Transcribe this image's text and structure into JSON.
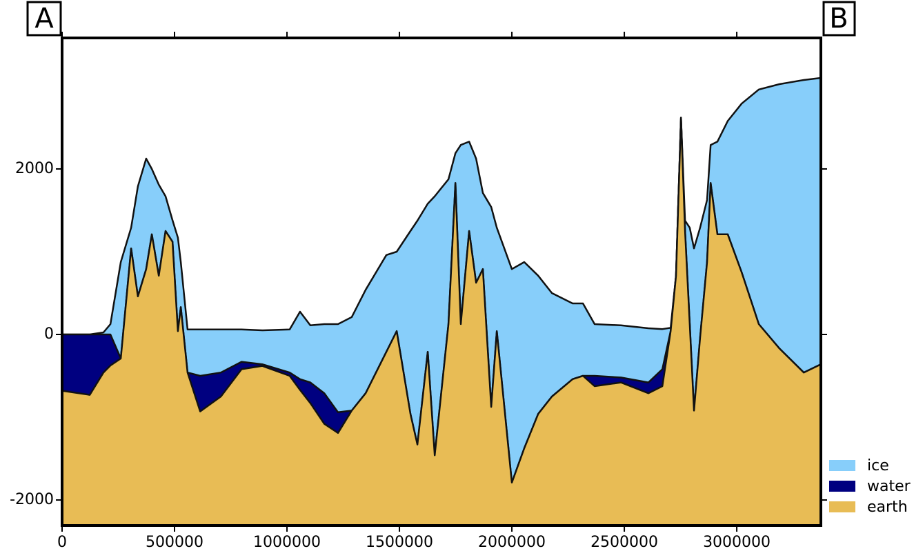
{
  "chart_data": {
    "type": "area",
    "start_label": "A",
    "end_label": "B",
    "x": [
      0,
      123000,
      184000,
      215000,
      261000,
      307000,
      337000,
      374000,
      399000,
      430000,
      460000,
      491000,
      515000,
      528000,
      558000,
      614000,
      706000,
      798000,
      890000,
      1012000,
      1058000,
      1104000,
      1166000,
      1227000,
      1288000,
      1350000,
      1442000,
      1488000,
      1549000,
      1580000,
      1626000,
      1657000,
      1718000,
      1749000,
      1773000,
      1810000,
      1841000,
      1871000,
      1908000,
      1933000,
      2000000,
      2055000,
      2117000,
      2178000,
      2270000,
      2316000,
      2368000,
      2485000,
      2607000,
      2669000,
      2706000,
      2730000,
      2752000,
      2770000,
      2791000,
      2810000,
      2837000,
      2868000,
      2884000,
      2914000,
      2960000,
      3022000,
      3098000,
      3190000,
      3298000,
      3374000
    ],
    "series": [
      {
        "name": "ice",
        "color": "#87cefa",
        "values": [
          0,
          0,
          25,
          125,
          875,
          1290,
          1790,
          2125,
          2000,
          1810,
          1670,
          1380,
          1170,
          875,
          60,
          60,
          60,
          60,
          50,
          60,
          275,
          110,
          125,
          125,
          210,
          540,
          960,
          1000,
          1250,
          1375,
          1580,
          1670,
          1875,
          2190,
          2290,
          2330,
          2125,
          1710,
          1540,
          1290,
          790,
          875,
          710,
          500,
          375,
          375,
          125,
          110,
          75,
          65,
          80,
          710,
          2620,
          1375,
          1290,
          1040,
          1290,
          1625,
          2290,
          2330,
          2580,
          2790,
          2960,
          3025,
          3075,
          3100
        ]
      },
      {
        "name": "water",
        "color": "#000080",
        "values": [
          0,
          0,
          0,
          0,
          -290,
          1040,
          460,
          790,
          1210,
          710,
          1250,
          1120,
          40,
          330,
          -460,
          -500,
          -460,
          -330,
          -360,
          -460,
          -540,
          -580,
          -710,
          -940,
          -920,
          -710,
          -210,
          40,
          -960,
          -1330,
          -210,
          -1460,
          125,
          1830,
          125,
          1250,
          625,
          790,
          -875,
          40,
          -1790,
          -1375,
          -960,
          -750,
          -540,
          -500,
          -500,
          -520,
          -580,
          -420,
          40,
          710,
          2620,
          1250,
          125,
          -920,
          -40,
          875,
          1830,
          1210,
          1210,
          750,
          125,
          -170,
          -460,
          -360
        ]
      },
      {
        "name": "earth",
        "color": "#e8bc55",
        "values": [
          -680,
          -730,
          -460,
          -375,
          -290,
          1040,
          460,
          790,
          1210,
          710,
          1250,
          1120,
          40,
          330,
          -460,
          -930,
          -750,
          -420,
          -380,
          -500,
          -670,
          -830,
          -1080,
          -1190,
          -920,
          -710,
          -210,
          40,
          -960,
          -1330,
          -210,
          -1460,
          125,
          1830,
          125,
          1250,
          625,
          790,
          -875,
          40,
          -1790,
          -1375,
          -960,
          -750,
          -540,
          -500,
          -625,
          -580,
          -710,
          -625,
          40,
          710,
          2620,
          1250,
          125,
          -920,
          -40,
          875,
          1830,
          1210,
          1210,
          750,
          125,
          -170,
          -460,
          -360
        ]
      }
    ],
    "xlim": [
      0,
      3374000
    ],
    "xticks": [
      0,
      500000,
      1000000,
      1500000,
      2000000,
      2500000,
      3000000
    ],
    "ylim": [
      -2308,
      3583
    ],
    "yticks": [
      -2000,
      0,
      2000
    ],
    "grid": false,
    "legend": "lower right outside"
  }
}
